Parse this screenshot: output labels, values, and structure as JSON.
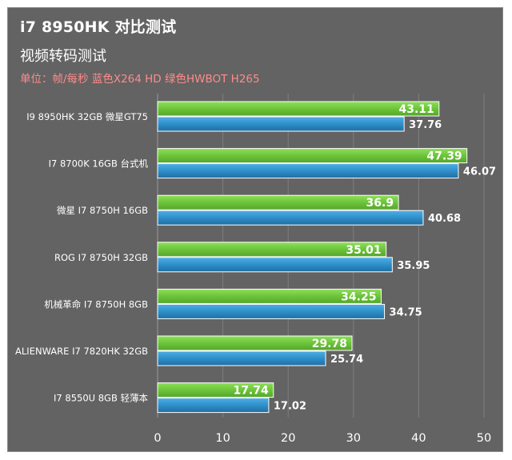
{
  "title": "i7 8950HK 对比测试",
  "subtitle": "视频转码测试",
  "unit_note": "单位：帧/每秒 蓝色X264 HD 绿色HWBOT H265",
  "colors": {
    "background": "#636363",
    "green": "#6cc43a",
    "blue": "#2f8fc9",
    "grid": "#7e7e7e",
    "text": "#ffffff",
    "note": "#ff8b8b"
  },
  "chart_data": {
    "type": "bar",
    "orientation": "horizontal",
    "categories": [
      "I9 8950HK 32GB 微星GT75",
      "I7 8700K 16GB 台式机",
      "微星 I7 8750H 16GB",
      "ROG I7 8750H 32GB",
      "机械革命 I7 8750H 8GB",
      "ALIENWARE I7 7820HK 32GB",
      "I7 8550U 8GB 轻薄本"
    ],
    "series": [
      {
        "color": "#6cc43a",
        "values": [
          43.11,
          47.39,
          36.9,
          35.01,
          34.25,
          29.78,
          17.74
        ]
      },
      {
        "color": "#2f8fc9",
        "values": [
          37.76,
          46.07,
          40.68,
          35.95,
          34.75,
          25.74,
          17.02
        ]
      }
    ],
    "xlim": [
      0,
      50
    ],
    "xticks": [
      0,
      10,
      20,
      30,
      40,
      50
    ],
    "grid": true
  }
}
